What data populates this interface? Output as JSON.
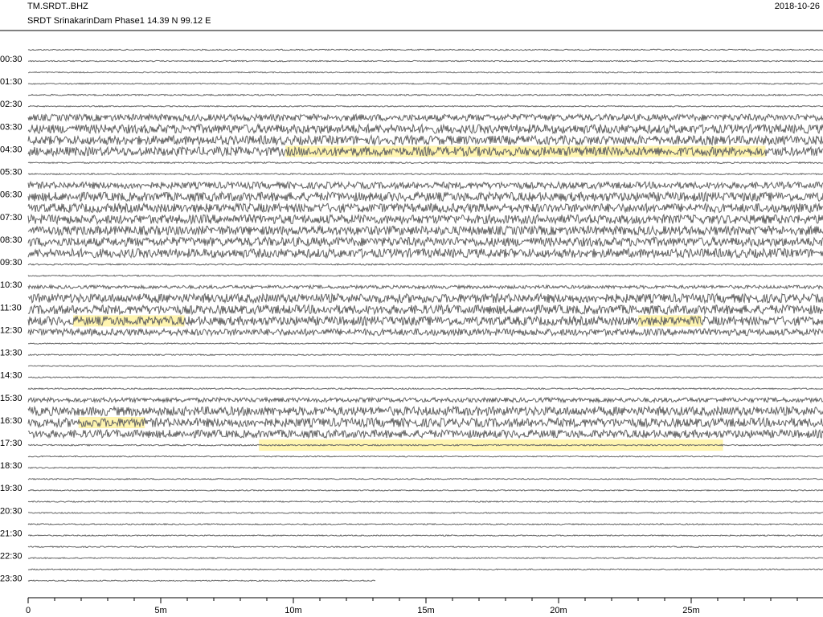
{
  "chart_data": {
    "type": "helicorder",
    "title": "TM.SRDT..BHZ",
    "subtitle": "SRDT SrinakarinDam Phase1  14.39 N 99.12 E",
    "date": "2018-10-26",
    "categories": [
      null,
      "00:30",
      null,
      "01:30",
      null,
      "02:30",
      null,
      "03:30",
      null,
      "04:30",
      null,
      "05:30",
      null,
      "06:30",
      null,
      "07:30",
      null,
      "08:30",
      null,
      "09:30",
      null,
      "10:30",
      null,
      "11:30",
      null,
      "12:30",
      null,
      "13:30",
      null,
      "14:30",
      null,
      "15:30",
      null,
      "16:30",
      null,
      "17:30",
      null,
      "18:30",
      null,
      "19:30",
      null,
      "20:30",
      null,
      "21:30",
      null,
      "22:30",
      null,
      "23:30"
    ],
    "values": [
      0.5,
      0.5,
      0.5,
      0.5,
      0.6,
      0.5,
      3,
      4,
      4,
      4,
      0.6,
      0.6,
      3,
      4,
      4,
      4,
      4,
      4,
      4,
      0.6,
      0.6,
      1.5,
      4,
      4,
      4,
      3,
      0.5,
      0.5,
      0.5,
      0.5,
      0.6,
      2,
      4,
      4,
      3.5,
      0.6,
      0.5,
      0.5,
      0.5,
      0.5,
      0.5,
      0.5,
      0.5,
      0.5,
      0.5,
      0.5,
      0.5,
      0.5
    ],
    "color": "#666666",
    "highlight_color": "#fff5b0",
    "highlights": [
      {
        "row": 9,
        "start": 9.7,
        "end": 27.8
      },
      {
        "row": 24,
        "start": 1.7,
        "end": 5.9
      },
      {
        "row": 24,
        "start": 23.0,
        "end": 25.4
      },
      {
        "row": 33,
        "start": 1.9,
        "end": 4.4
      },
      {
        "row": 35,
        "start": 8.7,
        "end": 26.2
      }
    ],
    "last_row_end": 13.1,
    "xlim": [
      0,
      30
    ],
    "xticks": [
      0,
      {
        "value": 5,
        "label": "5m"
      },
      {
        "value": 10,
        "label": "10m"
      },
      {
        "value": 15,
        "label": "15m"
      },
      {
        "value": 20,
        "label": "20m"
      },
      {
        "value": 25,
        "label": "25m"
      }
    ],
    "minor_tick_step": 1
  }
}
